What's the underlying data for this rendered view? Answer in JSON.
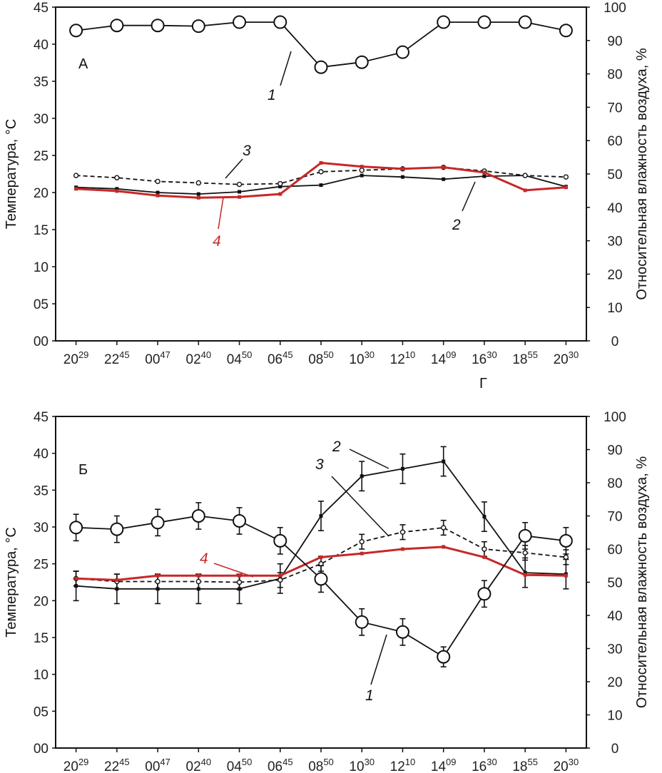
{
  "colors": {
    "line": "#111111",
    "red": "#c62828",
    "axis": "#111111"
  },
  "chart_data": [
    {
      "type": "line",
      "panel_label": "А",
      "ylabel_left": "Температура, °C",
      "ylabel_right": "Относительная влажность воздуха, %",
      "xlabel": "Г",
      "ylim_left": [
        0,
        45
      ],
      "ylim_right": [
        0,
        100
      ],
      "yticks_left": [
        "00",
        "05",
        "10",
        "15",
        "20",
        "25",
        "30",
        "35",
        "40",
        "45"
      ],
      "yticks_right": [
        "0",
        "10",
        "20",
        "30",
        "40",
        "50",
        "60",
        "70",
        "80",
        "90",
        "100"
      ],
      "categories": [
        {
          "h": "20",
          "m": "29"
        },
        {
          "h": "22",
          "m": "45"
        },
        {
          "h": "00",
          "m": "47"
        },
        {
          "h": "02",
          "m": "40"
        },
        {
          "h": "04",
          "m": "50"
        },
        {
          "h": "06",
          "m": "45"
        },
        {
          "h": "08",
          "m": "50"
        },
        {
          "h": "10",
          "m": "30"
        },
        {
          "h": "12",
          "m": "10"
        },
        {
          "h": "14",
          "m": "09"
        },
        {
          "h": "16",
          "m": "30"
        },
        {
          "h": "18",
          "m": "55"
        },
        {
          "h": "20",
          "m": "30"
        }
      ],
      "series": [
        {
          "label": "1",
          "axis": "right",
          "style": "circle",
          "color": "#111111",
          "values": [
            93,
            94.5,
            94.5,
            94.3,
            95.5,
            95.5,
            82,
            83.5,
            86.5,
            95.5,
            95.5,
            95.5,
            93
          ]
        },
        {
          "label": "2",
          "axis": "left",
          "style": "solid",
          "color": "#111111",
          "values": [
            20.7,
            20.5,
            20.0,
            19.8,
            20.1,
            20.8,
            21.0,
            22.3,
            22.1,
            21.8,
            22.2,
            22.3,
            20.8
          ]
        },
        {
          "label": "3",
          "axis": "left",
          "style": "dashed",
          "color": "#111111",
          "values": [
            22.3,
            22.0,
            21.5,
            21.3,
            21.1,
            21.2,
            22.8,
            23.0,
            23.2,
            23.4,
            22.9,
            22.3,
            22.1
          ]
        },
        {
          "label": "4",
          "axis": "left",
          "style": "solid",
          "color": "#c62828",
          "values": [
            20.5,
            20.2,
            19.6,
            19.3,
            19.4,
            19.8,
            24.0,
            23.5,
            23.2,
            23.4,
            22.7,
            20.3,
            20.7
          ]
        }
      ]
    },
    {
      "type": "line",
      "panel_label": "Б",
      "ylabel_left": "Температура, °C",
      "ylabel_right": "Относительная влажность воздуха, %",
      "ylim_left": [
        0,
        45
      ],
      "ylim_right": [
        0,
        100
      ],
      "yticks_left": [
        "00",
        "05",
        "10",
        "15",
        "20",
        "25",
        "30",
        "35",
        "40",
        "45"
      ],
      "yticks_right": [
        "0",
        "10",
        "20",
        "30",
        "40",
        "50",
        "60",
        "70",
        "80",
        "90",
        "100"
      ],
      "categories": [
        {
          "h": "20",
          "m": "29"
        },
        {
          "h": "22",
          "m": "45"
        },
        {
          "h": "00",
          "m": "47"
        },
        {
          "h": "02",
          "m": "40"
        },
        {
          "h": "04",
          "m": "50"
        },
        {
          "h": "06",
          "m": "45"
        },
        {
          "h": "08",
          "m": "50"
        },
        {
          "h": "10",
          "m": "30"
        },
        {
          "h": "12",
          "m": "10"
        },
        {
          "h": "14",
          "m": "09"
        },
        {
          "h": "16",
          "m": "30"
        },
        {
          "h": "18",
          "m": "55"
        },
        {
          "h": "20",
          "m": "30"
        }
      ],
      "series": [
        {
          "label": "1",
          "axis": "right",
          "style": "circle",
          "color": "#111111",
          "values": [
            66.5,
            66,
            68,
            70,
            68.5,
            62.5,
            51,
            38,
            35,
            27.5,
            46.5,
            64,
            62.5
          ],
          "errors": [
            4,
            4,
            4,
            4,
            4,
            4,
            4,
            4,
            4,
            3,
            4,
            4,
            4
          ]
        },
        {
          "label": "2",
          "axis": "left",
          "style": "solid",
          "color": "#111111",
          "values": [
            22.0,
            21.6,
            21.6,
            21.6,
            21.6,
            23.0,
            31.5,
            36.9,
            37.9,
            38.9,
            31.4,
            23.8,
            23.6
          ],
          "errors": [
            2,
            2,
            2,
            2,
            2,
            2,
            2,
            2,
            2,
            2,
            2,
            2,
            2
          ]
        },
        {
          "label": "3",
          "axis": "left",
          "style": "dashed",
          "color": "#111111",
          "values": [
            23.0,
            22.6,
            22.6,
            22.6,
            22.5,
            22.8,
            25.0,
            28.0,
            29.3,
            29.9,
            27.0,
            26.5,
            25.9
          ],
          "errors": [
            1,
            1,
            1,
            1,
            1,
            1,
            1,
            1,
            1,
            1,
            1,
            1,
            1
          ]
        },
        {
          "label": "4",
          "axis": "left",
          "style": "solid",
          "color": "#c62828",
          "values": [
            23.0,
            22.8,
            23.4,
            23.4,
            23.4,
            23.4,
            25.9,
            26.4,
            27.0,
            27.3,
            25.9,
            23.5,
            23.4
          ]
        }
      ]
    }
  ]
}
